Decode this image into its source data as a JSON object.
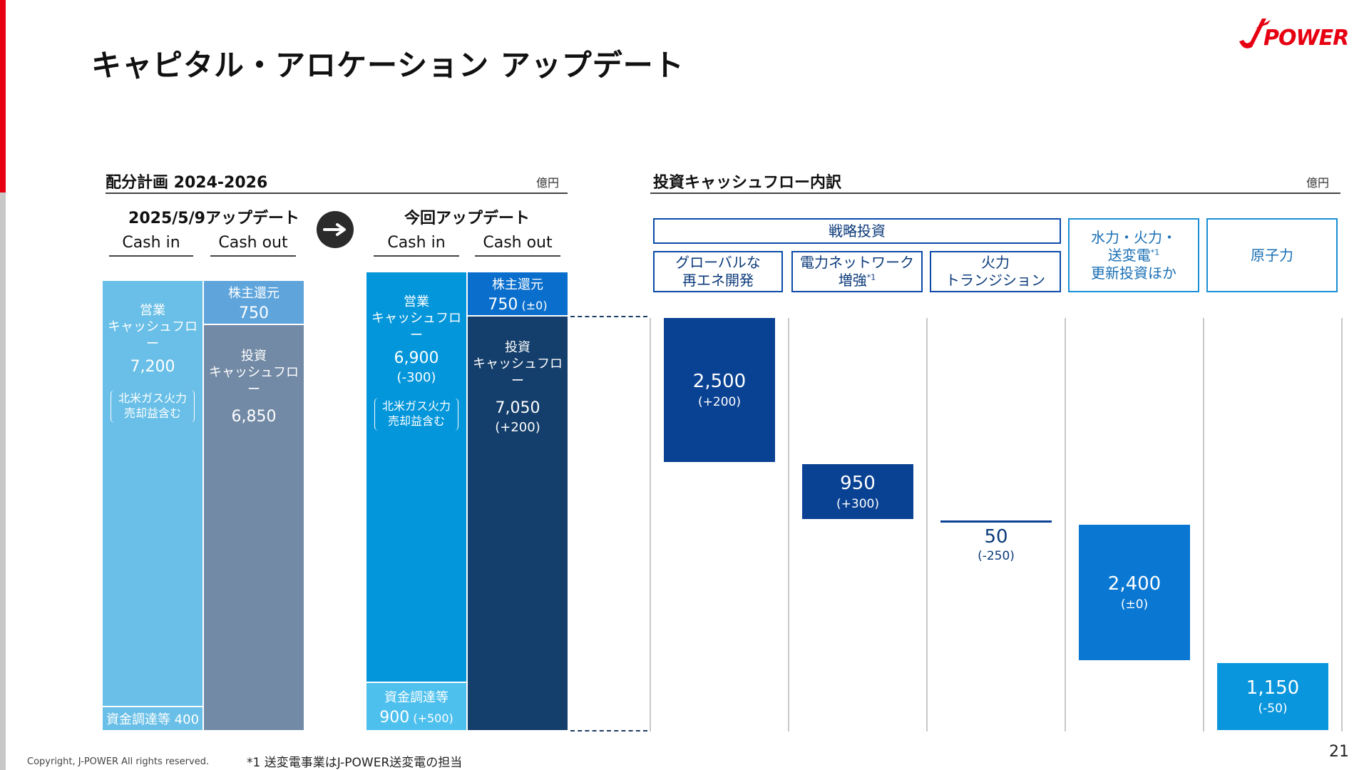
{
  "page": {
    "title": "キャピタル・アロケーション アップデート",
    "logo_text": "POWER",
    "page_number": "21",
    "copyright": "Copyright, J-POWER All rights reserved.",
    "footnote": "*1 送変電事業はJ-POWER送変電の担当",
    "colors": {
      "accent": "#e60012",
      "navy": "#143e6b",
      "blue": "#0099dd"
    }
  },
  "left_panel": {
    "title": "配分計画 2024-2026",
    "unit": "億円",
    "prev": {
      "heading": "2025/5/9アップデート",
      "col_in": "Cash in",
      "col_out": "Cash out",
      "cash_in": {
        "label1": "営業",
        "label2": "キャッシュフロー",
        "value": "7,200",
        "note1": "北米ガス火力",
        "note2": "売却益含む",
        "funding": "資金調達等 400"
      },
      "cash_out": {
        "shareholder_label": "株主還元",
        "shareholder_value": "750",
        "invest_label1": "投資",
        "invest_label2": "キャッシュフロー",
        "invest_value": "6,850"
      }
    },
    "current": {
      "heading": "今回アップデート",
      "col_in": "Cash in",
      "col_out": "Cash out",
      "cash_in": {
        "label1": "営業",
        "label2": "キャッシュフロー",
        "value": "6,900",
        "delta": "(-300)",
        "note1": "北米ガス火力",
        "note2": "売却益含む",
        "funding_label": "資金調達等",
        "funding_value": "900",
        "funding_delta": "(+500)"
      },
      "cash_out": {
        "shareholder_label": "株主還元",
        "shareholder_value": "750",
        "shareholder_delta": "(±0)",
        "invest_label1": "投資",
        "invest_label2": "キャッシュフロー",
        "invest_value": "7,050",
        "invest_delta": "(+200)"
      }
    }
  },
  "right_panel": {
    "title": "投資キャッシュフロー内訳",
    "unit": "億円",
    "group_label": "戦略投資",
    "categories": [
      {
        "line1": "グローバルな",
        "line2": "再エネ開発",
        "sup": ""
      },
      {
        "line1": "電力ネットワーク",
        "line2": "増強",
        "sup": "*1"
      },
      {
        "line1": "火力",
        "line2": "トランジション",
        "sup": ""
      },
      {
        "line1": "水力・火力・",
        "line2": "送変電",
        "line3": "更新投資ほか",
        "sup": "*1"
      },
      {
        "line1": "原子力",
        "line2": "",
        "sup": ""
      }
    ],
    "values": [
      {
        "value": "2,500",
        "delta": "(+200)"
      },
      {
        "value": "950",
        "delta": "(+300)"
      },
      {
        "value": "50",
        "delta": "(-250)"
      },
      {
        "value": "2,400",
        "delta": "(±0)"
      },
      {
        "value": "1,150",
        "delta": "(-50)"
      }
    ]
  }
}
